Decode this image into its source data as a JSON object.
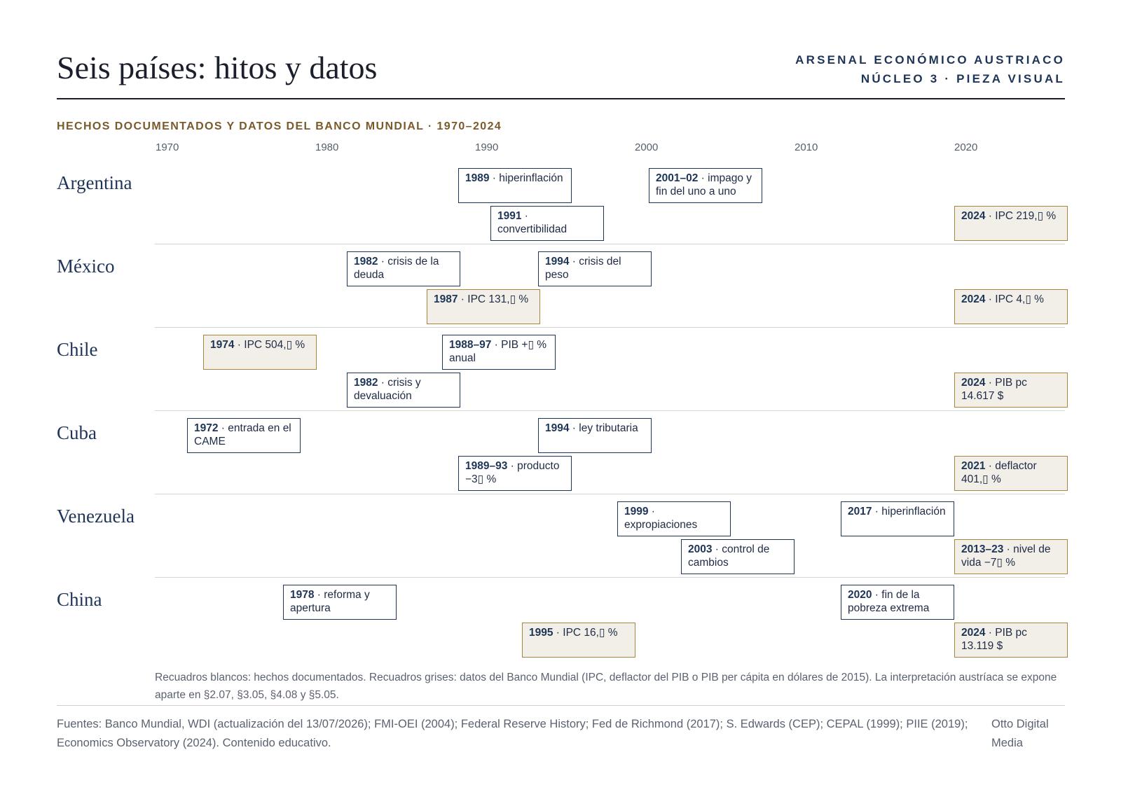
{
  "header": {
    "title": "Seis países: hitos y datos",
    "brand_line1": "ARSENAL ECONÓMICO AUSTRIACO",
    "brand_line2": "NÚCLEO 3 · PIEZA VISUAL"
  },
  "subtitle": "HECHOS DOCUMENTADOS Y DATOS DEL BANCO MUNDIAL · 1970–2024",
  "axis": {
    "ticks": [
      "1970",
      "1980",
      "1990",
      "2000",
      "2010",
      "2020"
    ]
  },
  "countries": [
    {
      "name": "Argentina",
      "events": [
        {
          "label": "1989",
          "text": "hiperinflación",
          "type": "fact"
        },
        {
          "label": "2001–02",
          "text": "impago y fin del uno a uno",
          "type": "fact"
        },
        {
          "label": "1991",
          "text": "convertibilidad",
          "type": "fact"
        },
        {
          "label": "2024",
          "text": "IPC 219,▯ %",
          "type": "data"
        }
      ]
    },
    {
      "name": "México",
      "events": [
        {
          "label": "1982",
          "text": "crisis de la deuda",
          "type": "fact"
        },
        {
          "label": "1994",
          "text": "crisis del peso",
          "type": "fact"
        },
        {
          "label": "1987",
          "text": "IPC 131,▯ %",
          "type": "data"
        },
        {
          "label": "2024",
          "text": "IPC 4,▯ %",
          "type": "data"
        }
      ]
    },
    {
      "name": "Chile",
      "events": [
        {
          "label": "1974",
          "text": "IPC 504,▯ %",
          "type": "data"
        },
        {
          "label": "1988–97",
          "text": "PIB +▯ % anual",
          "type": "fact"
        },
        {
          "label": "1982",
          "text": "crisis y devaluación",
          "type": "fact"
        },
        {
          "label": "2024",
          "text": "PIB pc 14.617 $",
          "type": "data"
        }
      ]
    },
    {
      "name": "Cuba",
      "events": [
        {
          "label": "1972",
          "text": "entrada en el CAME",
          "type": "fact"
        },
        {
          "label": "1994",
          "text": "ley tributaria",
          "type": "fact"
        },
        {
          "label": "1989–93",
          "text": "producto −3▯ %",
          "type": "fact"
        },
        {
          "label": "2021",
          "text": "deflactor 401,▯ %",
          "type": "data"
        }
      ]
    },
    {
      "name": "Venezuela",
      "events": [
        {
          "label": "1999",
          "text": "expropiaciones",
          "type": "fact"
        },
        {
          "label": "2017",
          "text": "hiperinflación",
          "type": "fact"
        },
        {
          "label": "2003",
          "text": "control de cambios",
          "type": "fact"
        },
        {
          "label": "2013–23",
          "text": "nivel de vida −7▯ %",
          "type": "data"
        }
      ]
    },
    {
      "name": "China",
      "events": [
        {
          "label": "1978",
          "text": "reforma y apertura",
          "type": "fact"
        },
        {
          "label": "2020",
          "text": "fin de la pobreza extrema",
          "type": "fact"
        },
        {
          "label": "1995",
          "text": "IPC 16,▯ %",
          "type": "data"
        },
        {
          "label": "2024",
          "text": "PIB pc 13.119 $",
          "type": "data"
        }
      ]
    }
  ],
  "note": "Recuadros blancos: hechos documentados. Recuadros grises: datos del Banco Mundial (IPC, deflactor del PIB o PIB per cápita en dólares de 2015). La interpretación austríaca se expone aparte en §2.07, §3.05, §4.08 y §5.05.",
  "footer": {
    "sources": "Fuentes: Banco Mundial, WDI (actualización del 13/07/2026); FMI-OEI (2004); Federal Reserve History; Fed de Richmond (2017); S. Edwards (CEP); CEPAL (1999); PIIE (2019); Economics Observatory (2024). Contenido educativo.",
    "credit": "Otto Digital Media"
  }
}
